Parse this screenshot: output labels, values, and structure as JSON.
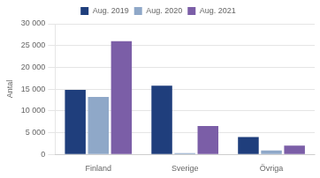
{
  "chart_data": {
    "type": "bar",
    "ylabel": "Antal",
    "categories": [
      "Finland",
      "Sverige",
      "Övriga"
    ],
    "series": [
      {
        "name": "Aug. 2019",
        "color": "#1F3E7C",
        "values": [
          14800,
          15800,
          4000
        ]
      },
      {
        "name": "Aug. 2020",
        "color": "#8FA8C8",
        "values": [
          13200,
          300,
          900
        ]
      },
      {
        "name": "Aug. 2021",
        "color": "#7B5EA7",
        "values": [
          26000,
          6500,
          2000
        ]
      }
    ],
    "ylim": [
      0,
      30000
    ],
    "yticks": [
      0,
      {
        "value": 5000,
        "label": "5 000"
      },
      {
        "value": 10000,
        "label": "10 000"
      },
      {
        "value": 15000,
        "label": "15 000"
      },
      {
        "value": 20000,
        "label": "20 000"
      },
      {
        "value": 25000,
        "label": "25 000"
      },
      {
        "value": 30000,
        "label": "30 000"
      }
    ],
    "grid": true,
    "legend": "top"
  }
}
